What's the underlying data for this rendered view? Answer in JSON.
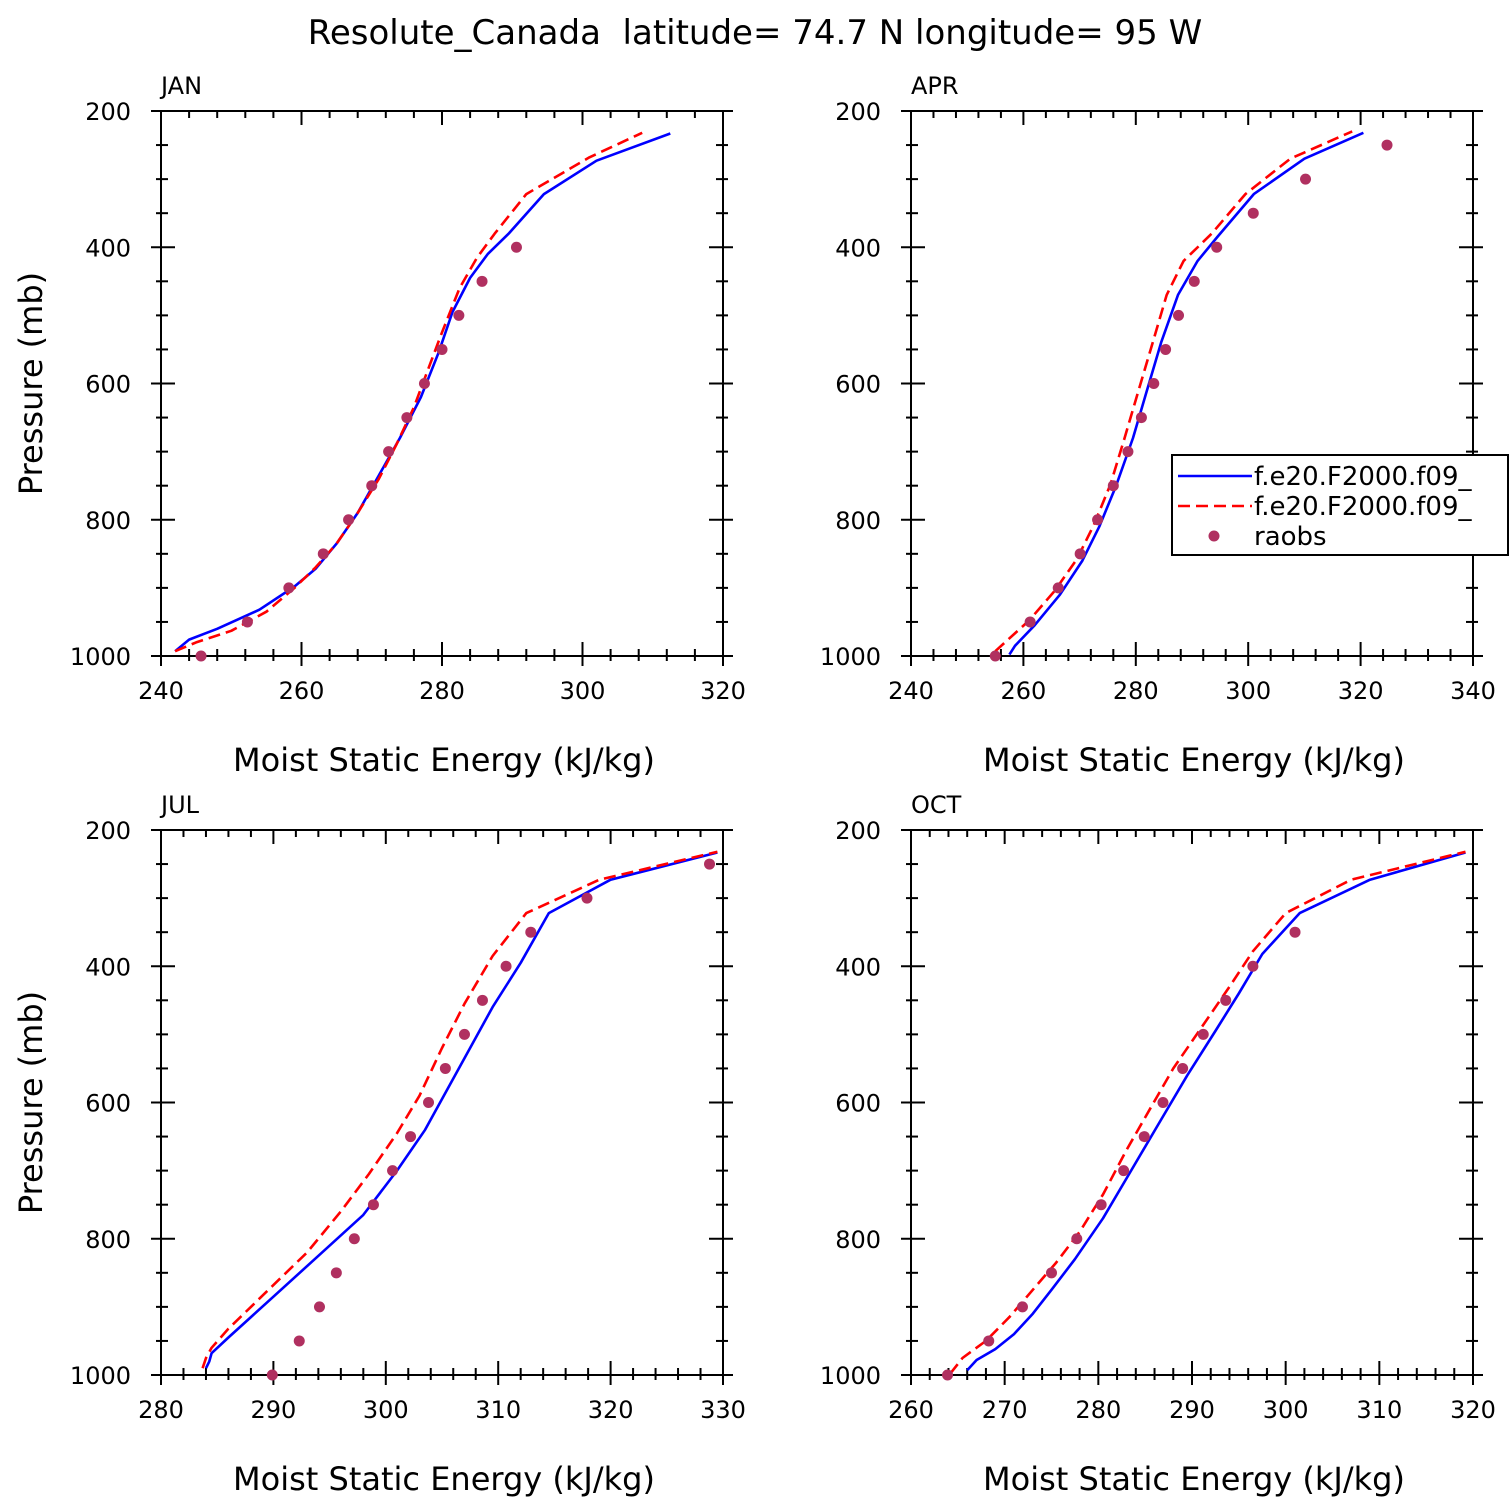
{
  "figure": {
    "title": "Resolute_Canada  latitude= 74.7 N longitude= 95 W"
  },
  "colors": {
    "model1": "#0000ff",
    "model2": "#ff0000",
    "raobs": "#b03060",
    "axis": "#000000"
  },
  "legend": {
    "panel": "APR",
    "entries": [
      {
        "label": "f.e20.F2000.f09_",
        "style": "solid",
        "color": "#0000ff"
      },
      {
        "label": "f.e20.F2000.f09_",
        "style": "dashed",
        "color": "#ff0000"
      },
      {
        "label": "raobs",
        "style": "marker",
        "color": "#b03060"
      }
    ]
  },
  "chart_data": [
    {
      "type": "line",
      "title": "JAN",
      "xlabel": "Moist Static Energy (kJ/kg)",
      "ylabel": "Pressure (mb)",
      "xlim": [
        240,
        320
      ],
      "xticks": [
        240,
        260,
        280,
        300,
        320
      ],
      "ylim": [
        1000,
        200
      ],
      "yticks": [
        200,
        400,
        600,
        800,
        1000
      ],
      "series": [
        {
          "name": "f.e20.F2000.f09_",
          "style": "solid",
          "x": [
            242,
            244,
            248,
            254,
            259,
            262,
            265,
            268,
            271,
            274,
            277,
            279.5,
            281.5,
            284,
            286.5,
            289.5,
            294.5,
            302,
            312.5
          ],
          "y": [
            993,
            976,
            960,
            932,
            898,
            872,
            835,
            790,
            735,
            680,
            620,
            555,
            495,
            445,
            410,
            380,
            322,
            273,
            233
          ]
        },
        {
          "name": "f.e20.F2000.f09_",
          "style": "dashed",
          "x": [
            242,
            245,
            250,
            255,
            259,
            262,
            265,
            268,
            271,
            273.5,
            276,
            278,
            280,
            282.5,
            285,
            287.5,
            292,
            301,
            308.5
          ],
          "y": [
            993,
            980,
            963,
            935,
            900,
            870,
            835,
            790,
            740,
            690,
            635,
            580,
            525,
            460,
            415,
            380,
            322,
            268,
            232
          ]
        },
        {
          "name": "raobs",
          "style": "marker",
          "x": [
            245.7,
            252.3,
            258.2,
            263.1,
            266.7,
            270,
            272.4,
            275,
            277.5,
            280,
            282.4,
            285.7,
            290.6
          ],
          "y": [
            1000,
            950,
            900,
            850,
            800,
            750,
            700,
            650,
            600,
            550,
            500,
            450,
            400
          ]
        }
      ]
    },
    {
      "type": "line",
      "title": "APR",
      "xlabel": "Moist Static Energy (kJ/kg)",
      "ylabel": "",
      "xlim": [
        240,
        340
      ],
      "xticks": [
        240,
        260,
        280,
        300,
        320,
        340
      ],
      "ylim": [
        1000,
        200
      ],
      "yticks": [
        200,
        400,
        600,
        800,
        1000
      ],
      "series": [
        {
          "name": "f.e20.F2000.f09_",
          "style": "solid",
          "x": [
            257.5,
            258.5,
            262,
            266.5,
            270.5,
            273.5,
            276.5,
            279.5,
            282,
            284.5,
            287.5,
            291,
            294.5,
            301,
            310,
            320.5
          ],
          "y": [
            998,
            985,
            955,
            910,
            860,
            810,
            750,
            680,
            610,
            540,
            470,
            420,
            385,
            322,
            270,
            232
          ]
        },
        {
          "name": "f.e20.F2000.f09_",
          "style": "dashed",
          "x": [
            255,
            257,
            261,
            265.5,
            269.5,
            272.5,
            275.5,
            278,
            280.5,
            283,
            285.5,
            288.5,
            293.5,
            299.5,
            307.5,
            318.5
          ],
          "y": [
            993,
            978,
            948,
            905,
            858,
            808,
            748,
            680,
            610,
            540,
            470,
            420,
            380,
            322,
            270,
            230
          ]
        },
        {
          "name": "raobs",
          "style": "marker",
          "x": [
            255,
            261.2,
            266.2,
            270.1,
            273.2,
            276,
            278.6,
            281,
            283.2,
            285.3,
            287.6,
            290.4,
            294.4,
            300.9,
            310.2,
            324.7
          ],
          "y": [
            1000,
            950,
            900,
            850,
            800,
            750,
            700,
            650,
            600,
            550,
            500,
            450,
            400,
            350,
            300,
            250
          ]
        }
      ]
    },
    {
      "type": "line",
      "title": "JUL",
      "xlabel": "Moist Static Energy (kJ/kg)",
      "ylabel": "Pressure (mb)",
      "xlim": [
        280,
        330
      ],
      "xticks": [
        280,
        290,
        300,
        310,
        320,
        330
      ],
      "ylim": [
        1000,
        200
      ],
      "yticks": [
        200,
        400,
        600,
        800,
        1000
      ],
      "series": [
        {
          "name": "f.e20.F2000.f09_",
          "style": "solid",
          "x": [
            284,
            284.3,
            284.5,
            286,
            288,
            290,
            294,
            298,
            301,
            303.5,
            305.5,
            307.5,
            309.5,
            312,
            314.5,
            320,
            329.5
          ],
          "y": [
            990,
            980,
            968,
            945,
            915,
            885,
            825,
            765,
            700,
            640,
            580,
            520,
            460,
            395,
            322,
            273,
            233
          ]
        },
        {
          "name": "f.e20.F2000.f09_",
          "style": "dashed",
          "x": [
            283.7,
            284,
            284.5,
            286,
            288,
            290.5,
            293,
            296,
            298.5,
            301,
            303,
            305,
            307,
            309.5,
            312.5,
            319,
            329.5
          ],
          "y": [
            990,
            975,
            960,
            932,
            900,
            860,
            820,
            760,
            705,
            645,
            590,
            520,
            455,
            385,
            322,
            273,
            232
          ]
        },
        {
          "name": "raobs",
          "style": "marker",
          "x": [
            289.9,
            292.3,
            294.1,
            295.6,
            297.2,
            298.9,
            300.6,
            302.2,
            303.8,
            305.3,
            307,
            308.6,
            310.7,
            312.9,
            317.9,
            328.8
          ],
          "y": [
            1000,
            950,
            900,
            850,
            800,
            750,
            700,
            650,
            600,
            550,
            500,
            450,
            400,
            350,
            300,
            250
          ]
        }
      ]
    },
    {
      "type": "line",
      "title": "OCT",
      "xlabel": "Moist Static Energy (kJ/kg)",
      "ylabel": "",
      "xlim": [
        260,
        320
      ],
      "xticks": [
        260,
        270,
        280,
        290,
        300,
        310,
        320
      ],
      "ylim": [
        1000,
        200
      ],
      "yticks": [
        200,
        400,
        600,
        800,
        1000
      ],
      "series": [
        {
          "name": "f.e20.F2000.f09_",
          "style": "solid",
          "x": [
            266,
            267,
            269,
            271,
            273,
            275,
            277.5,
            280.5,
            283.5,
            286.5,
            289.5,
            292.5,
            295,
            297.5,
            301.5,
            309,
            319.2
          ],
          "y": [
            993,
            978,
            962,
            940,
            910,
            875,
            830,
            770,
            700,
            630,
            560,
            495,
            440,
            382,
            322,
            273,
            233
          ]
        },
        {
          "name": "f.e20.F2000.f09_",
          "style": "dashed",
          "x": [
            264.2,
            265.5,
            268,
            270.5,
            273,
            275.5,
            278,
            280.5,
            283,
            285.5,
            288,
            291,
            294,
            296.5,
            300,
            307,
            319.2
          ],
          "y": [
            998,
            975,
            950,
            915,
            875,
            835,
            790,
            735,
            670,
            610,
            550,
            490,
            430,
            378,
            322,
            273,
            232
          ]
        },
        {
          "name": "raobs",
          "style": "marker",
          "x": [
            263.9,
            268.3,
            271.9,
            275,
            277.7,
            280.3,
            282.7,
            284.9,
            286.9,
            289,
            291.2,
            293.6,
            296.5,
            301
          ],
          "y": [
            1000,
            950,
            900,
            850,
            800,
            750,
            700,
            650,
            600,
            550,
            500,
            450,
            400,
            350
          ]
        }
      ]
    }
  ]
}
